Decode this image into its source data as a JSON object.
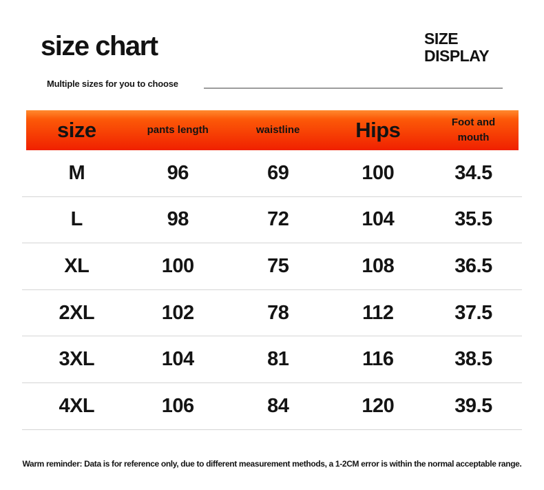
{
  "header": {
    "title": "size chart",
    "subtitle": "Multiple sizes for you to choose",
    "right_title": "SIZE\nDISPLAY"
  },
  "colors": {
    "header_gradient_top": "#ff8a2e",
    "header_gradient_mid": "#fc5a08",
    "header_gradient_bottom": "#f02000",
    "divider": "#d5d5d5",
    "rule_line": "#9c9c9c",
    "text": "#111111",
    "background": "#ffffff"
  },
  "table": {
    "columns": [
      {
        "key": "size",
        "label": "size",
        "emphasis": true,
        "wrap": false
      },
      {
        "key": "pants_length",
        "label": "pants length",
        "emphasis": false,
        "wrap": false
      },
      {
        "key": "waistline",
        "label": "waistline",
        "emphasis": false,
        "wrap": false
      },
      {
        "key": "hips",
        "label": "Hips",
        "emphasis": true,
        "wrap": false
      },
      {
        "key": "foot",
        "label": "Foot and mouth",
        "emphasis": false,
        "wrap": true
      }
    ],
    "rows": [
      {
        "size": "M",
        "pants_length": "96",
        "waistline": "69",
        "hips": "100",
        "foot": "34.5"
      },
      {
        "size": "L",
        "pants_length": "98",
        "waistline": "72",
        "hips": "104",
        "foot": "35.5"
      },
      {
        "size": "XL",
        "pants_length": "100",
        "waistline": "75",
        "hips": "108",
        "foot": "36.5"
      },
      {
        "size": "2XL",
        "pants_length": "102",
        "waistline": "78",
        "hips": "112",
        "foot": "37.5"
      },
      {
        "size": "3XL",
        "pants_length": "104",
        "waistline": "81",
        "hips": "116",
        "foot": "38.5"
      },
      {
        "size": "4XL",
        "pants_length": "106",
        "waistline": "84",
        "hips": "120",
        "foot": "39.5"
      }
    ]
  },
  "chart_data": {
    "type": "table",
    "title": "size chart",
    "subtitle": "Multiple sizes for you to choose",
    "columns": [
      "size",
      "pants length",
      "waistline",
      "Hips",
      "Foot and mouth"
    ],
    "rows": [
      [
        "M",
        96,
        69,
        100,
        34.5
      ],
      [
        "L",
        98,
        72,
        104,
        35.5
      ],
      [
        "XL",
        100,
        75,
        108,
        36.5
      ],
      [
        "2XL",
        102,
        78,
        112,
        37.5
      ],
      [
        "3XL",
        104,
        81,
        116,
        38.5
      ],
      [
        "4XL",
        106,
        84,
        120,
        39.5
      ]
    ],
    "notes": "Warm reminder: Data is for reference only, due to different measurement methods, a 1-2CM error is within the normal acceptable range."
  },
  "footer": {
    "reminder": "Warm reminder: Data is for reference only, due to different measurement methods, a 1-2CM error is within the normal acceptable range."
  }
}
